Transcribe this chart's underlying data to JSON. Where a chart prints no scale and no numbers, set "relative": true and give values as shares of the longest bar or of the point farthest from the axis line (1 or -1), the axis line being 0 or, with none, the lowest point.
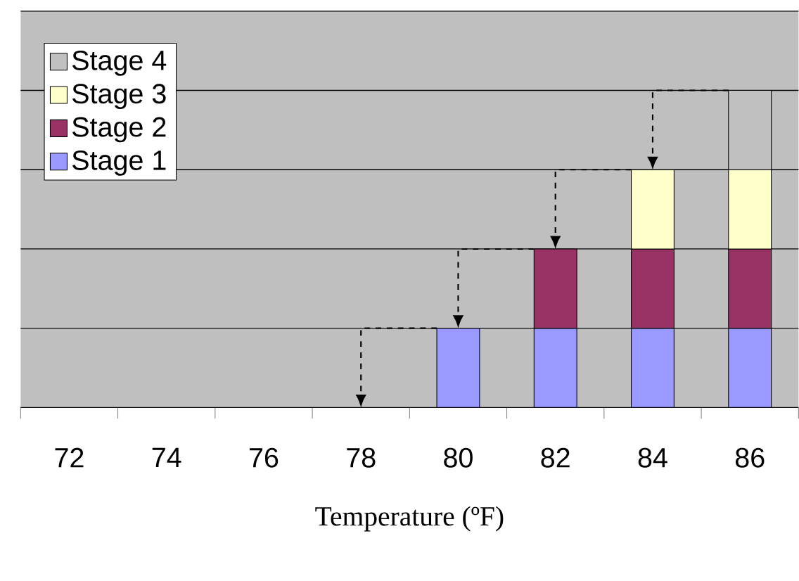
{
  "chart_data": {
    "type": "bar",
    "stacked": true,
    "relative": true,
    "xlabel": "Temperature (ºF)",
    "categories": [
      "72",
      "74",
      "76",
      "78",
      "80",
      "82",
      "84",
      "86"
    ],
    "series": [
      {
        "name": "Stage 1",
        "color": "#9999ff",
        "values": [
          null,
          null,
          null,
          null,
          0.25,
          0.25,
          0.25,
          0.25
        ]
      },
      {
        "name": "Stage 2",
        "color": "#993366",
        "values": [
          null,
          null,
          null,
          null,
          null,
          0.25,
          0.25,
          0.25
        ]
      },
      {
        "name": "Stage 3",
        "color": "#ffffcc",
        "values": [
          null,
          null,
          null,
          null,
          null,
          null,
          0.25,
          0.25
        ]
      },
      {
        "name": "Stage 4",
        "color": "#c0c0c0",
        "values": [
          null,
          null,
          null,
          null,
          null,
          null,
          null,
          0.25
        ]
      }
    ],
    "grid": "y",
    "legend": "top left"
  }
}
